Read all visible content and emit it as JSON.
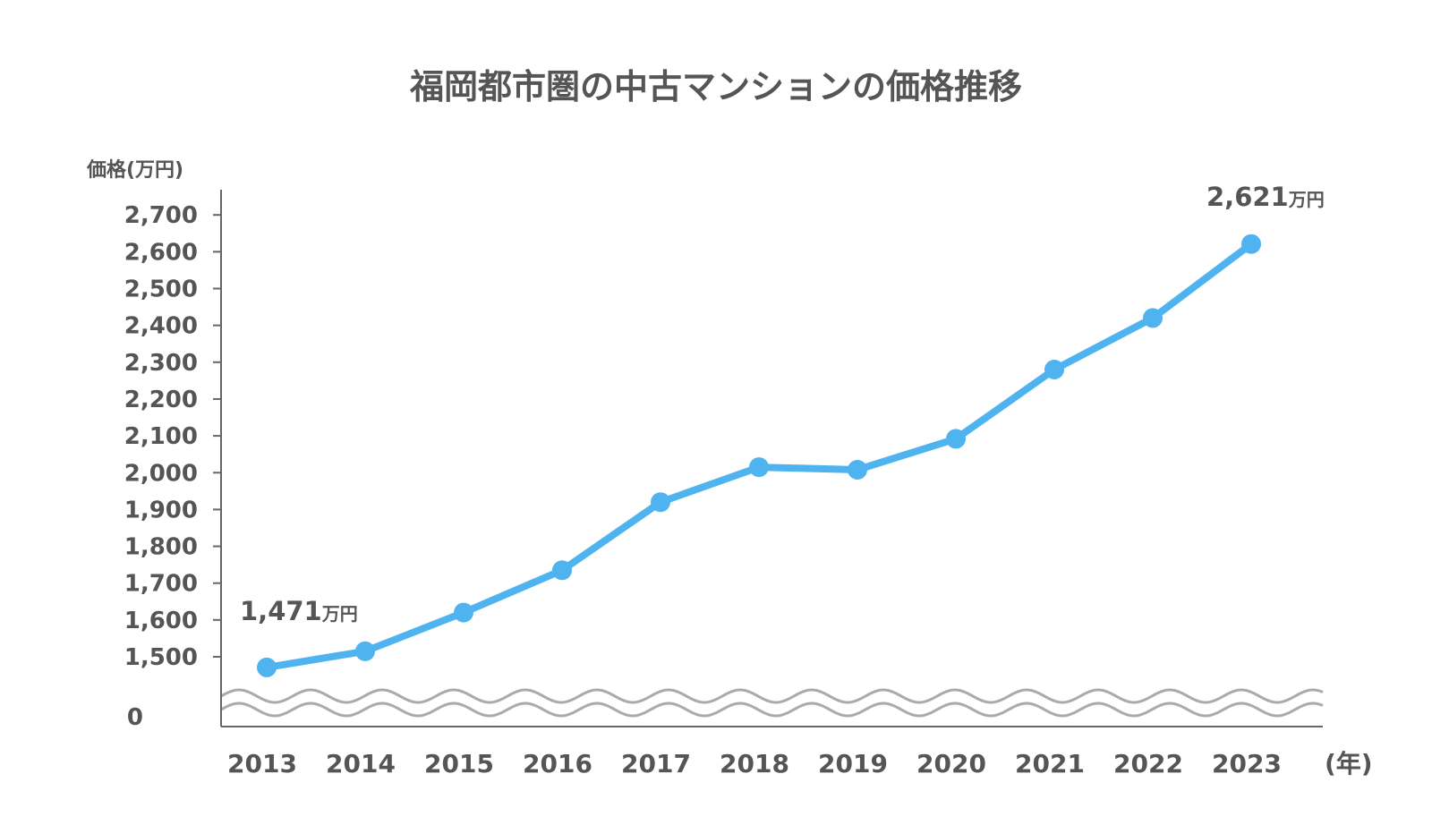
{
  "chart_data": {
    "type": "line",
    "title": "福岡都市圏の中古マンションの価格推移",
    "ylabel": "価格(万円)",
    "xlabel": "(年)",
    "categories": [
      "2013",
      "2014",
      "2015",
      "2016",
      "2017",
      "2018",
      "2019",
      "2020",
      "2021",
      "2022",
      "2023"
    ],
    "series": [
      {
        "name": "",
        "values": [
          1471,
          1515,
          1620,
          1735,
          1920,
          2015,
          2008,
          2092,
          2280,
          2420,
          2621
        ],
        "color": "#4fb3f0"
      }
    ],
    "y_ticks": [
      {
        "value": 1500,
        "label": "1,500"
      },
      {
        "value": 1600,
        "label": "1,600"
      },
      {
        "value": 1700,
        "label": "1,700"
      },
      {
        "value": 1800,
        "label": "1,800"
      },
      {
        "value": 1900,
        "label": "1,900"
      },
      {
        "value": 2000,
        "label": "2,000"
      },
      {
        "value": 2100,
        "label": "2,100"
      },
      {
        "value": 2200,
        "label": "2,200"
      },
      {
        "value": 2300,
        "label": "2,300"
      },
      {
        "value": 2400,
        "label": "2,400"
      },
      {
        "value": 2500,
        "label": "2,500"
      },
      {
        "value": 2600,
        "label": "2,600"
      },
      {
        "value": 2700,
        "label": "2,700"
      }
    ],
    "ylim": [
      1430,
      2700
    ],
    "y_zero_label": "0",
    "axis_break": true,
    "grid": false,
    "annotations": [
      {
        "index": 0,
        "value_text": "1,471",
        "unit": "万円"
      },
      {
        "index": 10,
        "value_text": "2,621",
        "unit": "万円"
      }
    ],
    "axis_color": "#666666",
    "break_color": "#aaaaaa"
  }
}
